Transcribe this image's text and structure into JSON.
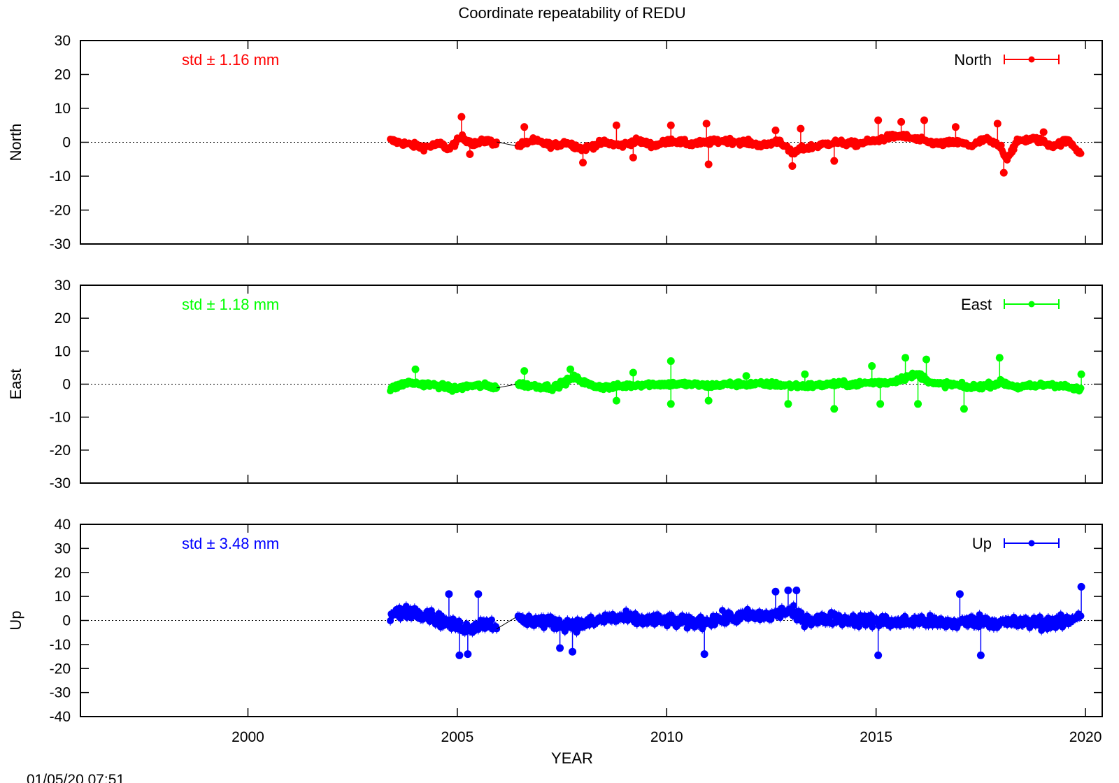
{
  "chart_data": {
    "type": "scatter",
    "title": "Coordinate repeatability of REDU",
    "xlabel": "YEAR",
    "timestamp": "01/05/20 07:51",
    "xlim": [
      1996.0,
      2020.4
    ],
    "xticks": [
      2000,
      2005,
      2010,
      2015,
      2020
    ],
    "x_tick_labels": [
      "2000",
      "2005",
      "2010",
      "2015",
      "2020"
    ],
    "legend_position": "top-right",
    "grid": false,
    "panels": [
      {
        "id": "north",
        "ylabel": "North",
        "legend": "North",
        "std_label": "std ± 1.16 mm",
        "color": "#ff0000",
        "ylim": [
          -30,
          30
        ],
        "yticks": [
          -30,
          -20,
          -10,
          0,
          10,
          20,
          30
        ],
        "y_tick_labels": [
          "-30",
          "-20",
          "-10",
          "0",
          "10",
          "20",
          "30"
        ],
        "series": {
          "name": "North",
          "x": [
            2003.4,
            2003.8,
            2004.2,
            2004.6,
            2004.8,
            2005.1,
            2005.4,
            2005.7,
            2005.95,
            2006.45,
            2006.8,
            2007.3,
            2007.6,
            2008.0,
            2008.5,
            2008.9,
            2009.3,
            2009.7,
            2010.1,
            2010.6,
            2011.0,
            2011.4,
            2011.9,
            2012.3,
            2012.7,
            2013.0,
            2013.2,
            2013.6,
            2014.0,
            2014.5,
            2015.0,
            2015.3,
            2015.6,
            2015.9,
            2016.1,
            2016.5,
            2016.9,
            2017.3,
            2017.6,
            2018.0,
            2018.1,
            2018.4,
            2018.8,
            2019.2,
            2019.6,
            2019.9
          ],
          "y": [
            0.5,
            -0.5,
            -1.5,
            -0.5,
            -2.0,
            1.5,
            -0.5,
            0.5,
            -0.5,
            -1.0,
            0.5,
            -1.0,
            0.0,
            -2.0,
            0.0,
            -1.0,
            0.5,
            -1.0,
            0.5,
            -0.5,
            0.0,
            0.5,
            0.0,
            -1.0,
            0.5,
            -3.5,
            -2.0,
            -1.0,
            0.0,
            -0.5,
            0.5,
            1.5,
            2.0,
            1.0,
            0.5,
            -0.5,
            0.0,
            -1.0,
            1.0,
            -1.5,
            -5.0,
            0.5,
            1.0,
            -1.0,
            0.5,
            -3.5
          ],
          "outliers_x": [
            2005.1,
            2005.3,
            2006.6,
            2008.0,
            2008.8,
            2009.2,
            2010.1,
            2010.95,
            2011.0,
            2012.6,
            2013.0,
            2013.2,
            2014.0,
            2015.05,
            2015.6,
            2016.15,
            2016.9,
            2017.9,
            2018.05,
            2019.0
          ],
          "outliers_y": [
            7.5,
            -3.5,
            4.5,
            -6.0,
            5.0,
            -4.5,
            5.0,
            5.5,
            -6.5,
            3.5,
            -7.0,
            4.0,
            -5.5,
            6.5,
            6.0,
            6.5,
            4.5,
            5.5,
            -9.0,
            3.0
          ],
          "spread": 1.5
        }
      },
      {
        "id": "east",
        "ylabel": "East",
        "legend": "East",
        "std_label": "std ± 1.18 mm",
        "color": "#00ff00",
        "ylim": [
          -30,
          30
        ],
        "yticks": [
          -30,
          -20,
          -10,
          0,
          10,
          20,
          30
        ],
        "y_tick_labels": [
          "-30",
          "-20",
          "-10",
          "0",
          "10",
          "20",
          "30"
        ],
        "series": {
          "name": "East",
          "x": [
            2003.4,
            2003.8,
            2004.2,
            2004.6,
            2004.9,
            2005.3,
            2005.7,
            2005.95,
            2006.45,
            2006.8,
            2007.3,
            2007.8,
            2008.2,
            2008.6,
            2009.0,
            2009.5,
            2010.0,
            2010.5,
            2011.0,
            2011.5,
            2012.0,
            2012.5,
            2013.0,
            2013.5,
            2014.0,
            2014.5,
            2014.9,
            2015.3,
            2015.7,
            2016.0,
            2016.4,
            2016.8,
            2017.2,
            2017.6,
            2018.0,
            2018.4,
            2018.8,
            2019.2,
            2019.6,
            2019.9
          ],
          "y": [
            -1.5,
            0.5,
            0.0,
            -0.5,
            -1.5,
            -0.5,
            -0.5,
            -1.0,
            0.0,
            -0.5,
            -1.0,
            2.0,
            -0.5,
            -1.0,
            -0.5,
            0.0,
            0.0,
            0.0,
            -0.5,
            0.0,
            0.0,
            0.0,
            -0.5,
            -0.5,
            0.0,
            0.0,
            0.5,
            0.5,
            2.0,
            3.0,
            0.0,
            0.0,
            -1.0,
            -0.5,
            0.5,
            -1.0,
            -0.5,
            0.0,
            -1.0,
            -2.0
          ],
          "outliers_x": [
            2004.0,
            2006.6,
            2007.7,
            2008.8,
            2009.2,
            2010.1,
            2010.1,
            2011.0,
            2011.9,
            2012.9,
            2013.3,
            2014.0,
            2014.9,
            2015.1,
            2015.7,
            2016.0,
            2016.2,
            2017.1,
            2017.95,
            2019.9
          ],
          "outliers_y": [
            4.5,
            4.0,
            4.5,
            -5.0,
            3.5,
            7.0,
            -6.0,
            -5.0,
            2.5,
            -6.0,
            3.0,
            -7.5,
            5.5,
            -6.0,
            8.0,
            -6.0,
            7.5,
            -7.5,
            8.0,
            3.0
          ],
          "spread": 1.5
        }
      },
      {
        "id": "up",
        "ylabel": "Up",
        "legend": "Up",
        "std_label": "std ± 3.48 mm",
        "color": "#0000ff",
        "ylim": [
          -40,
          40
        ],
        "yticks": [
          -40,
          -30,
          -20,
          -10,
          0,
          10,
          20,
          30,
          40
        ],
        "y_tick_labels": [
          "-40",
          "-30",
          "-20",
          "-10",
          "0",
          "10",
          "20",
          "30",
          "40"
        ],
        "series": {
          "name": "Up",
          "x": [
            2003.4,
            2003.8,
            2004.2,
            2004.6,
            2004.9,
            2005.3,
            2005.7,
            2005.95,
            2006.45,
            2006.8,
            2007.3,
            2007.8,
            2008.2,
            2008.6,
            2009.0,
            2009.5,
            2010.0,
            2010.5,
            2011.0,
            2011.5,
            2012.0,
            2012.5,
            2012.9,
            2013.2,
            2013.6,
            2014.0,
            2014.5,
            2015.0,
            2015.5,
            2016.0,
            2016.5,
            2017.0,
            2017.5,
            2018.0,
            2018.5,
            2019.0,
            2019.5,
            2019.9
          ],
          "y": [
            2.0,
            4.0,
            3.0,
            0.0,
            -2.0,
            -3.0,
            -1.0,
            -2.0,
            0.0,
            0.0,
            -1.0,
            -2.0,
            -1.0,
            1.0,
            1.0,
            0.0,
            0.0,
            -1.0,
            0.0,
            1.0,
            2.0,
            2.0,
            4.0,
            1.0,
            0.0,
            1.0,
            0.0,
            0.0,
            -1.0,
            0.0,
            -1.0,
            -1.0,
            0.0,
            -1.0,
            -1.0,
            -1.0,
            -1.0,
            3.0
          ],
          "outliers_x": [
            2004.8,
            2005.05,
            2005.25,
            2005.5,
            2007.45,
            2007.75,
            2010.9,
            2012.6,
            2012.9,
            2013.1,
            2015.05,
            2017.0,
            2017.5,
            2019.9
          ],
          "outliers_y": [
            11.0,
            -14.5,
            -14.0,
            11.0,
            -11.5,
            -13.0,
            -14.0,
            12.0,
            12.5,
            12.5,
            -14.5,
            11.0,
            -14.5,
            14.0
          ],
          "spread": 4.5
        }
      }
    ]
  }
}
